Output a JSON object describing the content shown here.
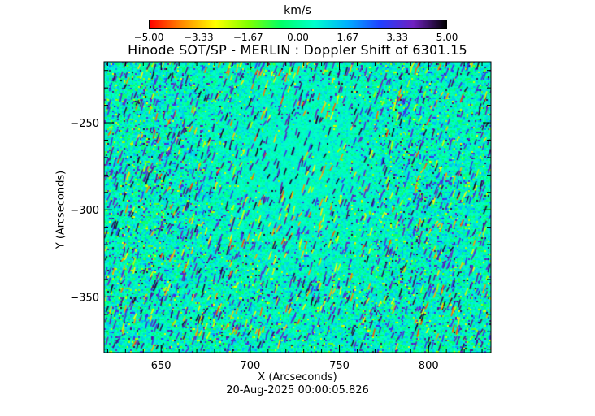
{
  "chart_data": {
    "type": "heatmap",
    "title": "Hinode SOT/SP - MERLIN : Doppler Shift of 6301.15",
    "xlabel": "X (Arcseconds)",
    "ylabel": "Y (Arcseconds)",
    "timestamp": "20-Aug-2025 00:00:05.826",
    "xlim": [
      618,
      835
    ],
    "ylim": [
      -382,
      -215
    ],
    "x_ticks": [
      650,
      700,
      750,
      800
    ],
    "x_tick_labels": [
      "650",
      "700",
      "750",
      "800"
    ],
    "y_ticks": [
      -250,
      -300,
      -350
    ],
    "y_tick_labels": [
      "−250",
      "−300",
      "−350"
    ],
    "colorbar": {
      "unit": "km/s",
      "range": [
        -5.0,
        5.0
      ],
      "tick_values": [
        -5.0,
        -3.33,
        -1.67,
        0.0,
        1.67,
        3.33,
        5.0
      ],
      "tick_labels": [
        "−5.00",
        "−3.33",
        "−1.67",
        "0.00",
        "1.67",
        "3.33",
        "5.00"
      ],
      "colormap": [
        "#ff0000",
        "#ff8c00",
        "#ffff00",
        "#80ff00",
        "#00ff66",
        "#00ffcc",
        "#00b0ff",
        "#2040ff",
        "#7020c0",
        "#000000"
      ]
    },
    "grid": false
  }
}
